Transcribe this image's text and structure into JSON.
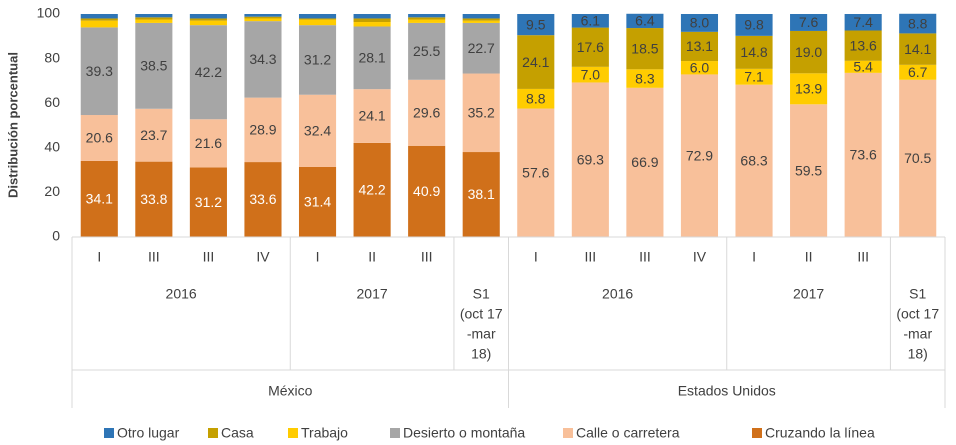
{
  "chart_data": {
    "type": "stacked_bar",
    "ylabel": "Distribución porcentual",
    "ylim": [
      0,
      100
    ],
    "yticks": [
      0,
      20,
      40,
      60,
      80,
      100
    ],
    "legend": "bottom",
    "category_groups": [
      {
        "label": "México",
        "groups": [
          {
            "label": "2016",
            "categories": [
              "I",
              "III",
              "III",
              "IV"
            ]
          },
          {
            "label": "2017",
            "categories": [
              "I",
              "II",
              "III"
            ]
          },
          {
            "label": [
              "S1",
              "(oct 17",
              "-mar",
              "18)"
            ],
            "categories": [
              null
            ]
          }
        ]
      },
      {
        "label": "Estados Unidos",
        "groups": [
          {
            "label": "2016",
            "categories": [
              "I",
              "III",
              "III",
              "IV"
            ]
          },
          {
            "label": "2017",
            "categories": [
              "I",
              "II",
              "III"
            ]
          },
          {
            "label": [
              "S1",
              "(oct 17",
              "-mar",
              "18)"
            ],
            "categories": [
              null
            ]
          }
        ]
      }
    ],
    "series": [
      {
        "name": "Cruzando la línea",
        "color": "#d0701a",
        "label_color": "#ffffff",
        "values": [
          34.1,
          33.8,
          31.2,
          33.6,
          31.4,
          42.2,
          40.9,
          38.1,
          null,
          null,
          null,
          null,
          null,
          null,
          null,
          null
        ],
        "value_labels": [
          "34.1",
          "33.8",
          "31.2",
          "33.6",
          "31.4",
          "42.2",
          "40.9",
          "38.1",
          null,
          null,
          null,
          null,
          null,
          null,
          null,
          null
        ]
      },
      {
        "name": "Calle o carretera",
        "color": "#f8c09a",
        "label_color": "#404040",
        "values": [
          20.6,
          23.7,
          21.6,
          28.9,
          32.4,
          24.1,
          29.6,
          35.2,
          57.6,
          69.3,
          66.9,
          72.9,
          68.3,
          59.5,
          73.6,
          70.5
        ],
        "value_labels": [
          "20.6",
          "23.7",
          "21.6",
          "28.9",
          "32.4",
          "24.1",
          "29.6",
          "35.2",
          "57.6",
          "69.3",
          "66.9",
          "72.9",
          "68.3",
          "59.5",
          "73.6",
          "70.5"
        ]
      },
      {
        "name": "Desierto o montaña",
        "color": "#a6a6a6",
        "label_color": "#404040",
        "values": [
          39.3,
          38.5,
          42.2,
          34.3,
          31.2,
          28.1,
          25.5,
          22.7,
          null,
          null,
          null,
          null,
          null,
          null,
          null,
          null
        ],
        "value_labels": [
          "39.3",
          "38.5",
          "42.2",
          "34.3",
          "31.2",
          "28.1",
          "25.5",
          "22.7",
          null,
          null,
          null,
          null,
          null,
          null,
          null,
          null
        ]
      },
      {
        "name": "Trabajo",
        "color": "#ffcc00",
        "label_color": "#404040",
        "values": [
          3,
          1.5,
          2,
          1.2,
          2.5,
          2,
          1.5,
          1,
          8.8,
          7.0,
          8.3,
          6.0,
          7.1,
          13.9,
          5.4,
          6.7
        ],
        "value_labels": [
          null,
          null,
          null,
          null,
          null,
          null,
          null,
          null,
          "8.8",
          "7.0",
          "8.3",
          "6.0",
          "7.1",
          "13.9",
          "5.4",
          "6.7"
        ]
      },
      {
        "name": "Casa",
        "color": "#c5a000",
        "label_color": "#404040",
        "values": [
          1,
          1,
          1,
          0.8,
          0.5,
          1.6,
          1,
          1,
          24.1,
          17.6,
          18.5,
          13.1,
          14.8,
          19.0,
          13.6,
          14.1
        ],
        "value_labels": [
          null,
          null,
          null,
          null,
          null,
          null,
          null,
          null,
          "24.1",
          "17.6",
          "18.5",
          "13.1",
          "14.8",
          "19.0",
          "13.6",
          "14.1"
        ]
      },
      {
        "name": "Otro lugar",
        "color": "#2e75b6",
        "label_color": "#404040",
        "values": [
          2,
          1.5,
          2,
          1.2,
          2,
          2,
          1.5,
          2,
          9.5,
          6.1,
          6.4,
          8.0,
          9.8,
          7.6,
          7.4,
          8.8
        ],
        "value_labels": [
          null,
          null,
          null,
          null,
          null,
          null,
          null,
          null,
          "9.5",
          "6.1",
          "6.4",
          "8.0",
          "9.8",
          "7.6",
          "7.4",
          "8.8"
        ]
      }
    ]
  }
}
